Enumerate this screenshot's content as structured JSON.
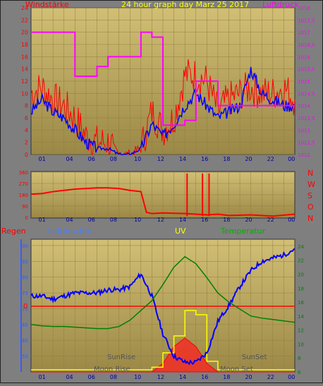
{
  "header": {
    "left_title": "Windstärke",
    "center_title": "24 hour graph day   Marz 25 2017",
    "right_title": "Luftdruck"
  },
  "colors": {
    "plot_bg_top": "#c9b468",
    "plot_bg_bottom": "#a18f4b",
    "wind": "#ff0000",
    "wind_avg": "#0000ff",
    "pressure": "#ff00ff",
    "humidity": "#0000ff",
    "temperature": "#008000",
    "uv": "#ffff00",
    "rain": "#ff0000",
    "axis_left": "#ff0000",
    "axis_right": "#ff00ff",
    "axis_temp": "#008000"
  },
  "x_axis": {
    "ticks": [
      "01",
      "04",
      "06",
      "08",
      "10",
      "12",
      "14",
      "16",
      "18",
      "20",
      "22",
      "00"
    ]
  },
  "direction_labels": [
    "N",
    "W",
    "S",
    "O",
    "N"
  ],
  "bottom_panel_titles": {
    "rain": "Regen",
    "humidity": "Luftfeuchte",
    "uv": "UV",
    "temperature": "Temperatur"
  },
  "annotations": {
    "sunrise": "SunRise",
    "sunset": "SunSet",
    "moonrise": "Moon Rise",
    "moonset": "Moon Set",
    "zero_line": "0"
  },
  "chart_data": [
    {
      "type": "line",
      "title": "24 hour graph day   Marz 25 2017",
      "ylabel": "Windstärke",
      "y2label": "Luftdruck",
      "ylim": [
        0,
        24
      ],
      "y_ticks": [
        "0",
        "2",
        "4",
        "6",
        "8",
        "10",
        "12",
        "14",
        "16",
        "18",
        "20",
        "22",
        "24"
      ],
      "y2lim": [
        1012,
        1018
      ],
      "y2_ticks": [
        "1012",
        "1012,5",
        "1013",
        "1013,5",
        "1014",
        "1014,5",
        "1015",
        "1015,5",
        "1016",
        "1016,5",
        "1017",
        "1017,5",
        "1018"
      ],
      "x_hours": [
        0,
        1,
        2,
        3,
        4,
        5,
        6,
        7,
        8,
        9,
        10,
        11,
        12,
        13,
        14,
        15,
        16,
        17,
        18,
        19,
        20,
        21,
        22,
        23,
        24
      ],
      "series": [
        {
          "name": "wind_gust",
          "values": [
            10,
            11,
            9,
            8,
            6,
            3,
            2,
            2,
            0,
            0,
            1,
            7,
            4,
            6,
            13,
            13,
            12,
            7,
            9,
            10,
            11,
            10,
            10,
            11,
            9
          ]
        },
        {
          "name": "wind_avg",
          "values": [
            7,
            9,
            7,
            6,
            4,
            2,
            1,
            1,
            0,
            0,
            1,
            5,
            3,
            5,
            8,
            10,
            8,
            6,
            7,
            8,
            14,
            10,
            9,
            8,
            8
          ]
        },
        {
          "name": "pressure",
          "values": [
            1017,
            1017,
            1017,
            1017,
            1015.2,
            1015.2,
            1015.6,
            1016,
            1016,
            1016,
            1017,
            1016.8,
            1013.2,
            1013.2,
            1013.4,
            1015,
            1015,
            1014,
            1014,
            1014,
            1014,
            1014,
            1014,
            1014,
            1014
          ]
        }
      ]
    },
    {
      "type": "line",
      "ylabel": "direction",
      "ylim": [
        0,
        360
      ],
      "y_ticks": [
        "0",
        "90",
        "180",
        "270",
        "360"
      ],
      "x_hours": [
        0,
        1,
        2,
        3,
        4,
        5,
        6,
        7,
        8,
        9,
        10,
        10.5,
        11,
        12,
        14,
        15,
        16,
        17,
        18,
        20,
        22,
        24
      ],
      "series": [
        {
          "name": "wind_direction",
          "values": [
            185,
            190,
            205,
            215,
            225,
            230,
            235,
            235,
            230,
            215,
            205,
            40,
            30,
            35,
            30,
            25,
            20,
            25,
            15,
            20,
            10,
            25
          ]
        }
      ]
    },
    {
      "type": "line",
      "ylabel": "Luftfeuchte",
      "y_ticks": [
        "55",
        "60",
        "65",
        "70",
        "75",
        "80",
        "85",
        "90"
      ],
      "ylim": [
        50,
        92
      ],
      "y2label": "Temperatur",
      "y2_ticks": [
        "6",
        "8",
        "10",
        "12",
        "14",
        "16",
        "18",
        "20",
        "22",
        "24"
      ],
      "y2lim": [
        6,
        25
      ],
      "x_hours": [
        0,
        1,
        2,
        3,
        4,
        5,
        6,
        7,
        8,
        9,
        10,
        11,
        12,
        13,
        14,
        15,
        16,
        17,
        18,
        19,
        20,
        21,
        22,
        23,
        24
      ],
      "series": [
        {
          "name": "humidity",
          "values": [
            74,
            74,
            73,
            74,
            75,
            75,
            75,
            76,
            76,
            77,
            81,
            74,
            62,
            55,
            53,
            53,
            56,
            66,
            71,
            77,
            82,
            85,
            86,
            87,
            89
          ]
        },
        {
          "name": "temperature",
          "values": [
            12.8,
            12.6,
            12.5,
            12.5,
            12.4,
            12.3,
            12.2,
            12.2,
            12.5,
            13.4,
            14.8,
            16.2,
            18.5,
            21,
            22.5,
            21.5,
            19.5,
            17.3,
            16,
            15,
            14,
            13.7,
            13.5,
            13.3,
            13.1
          ]
        },
        {
          "name": "uv",
          "values": [
            0,
            0,
            0,
            0,
            0,
            0,
            0,
            0,
            0,
            0,
            0,
            0.3,
            2,
            4,
            7,
            6.5,
            1,
            0,
            0,
            0,
            0,
            0,
            0,
            0,
            0
          ]
        },
        {
          "name": "rain",
          "values": [
            0,
            0,
            0,
            0,
            0,
            0,
            0,
            0,
            0,
            0,
            0,
            0,
            1,
            3,
            4,
            3,
            1,
            0,
            0,
            0,
            0,
            0,
            0,
            0,
            0
          ]
        }
      ]
    }
  ]
}
